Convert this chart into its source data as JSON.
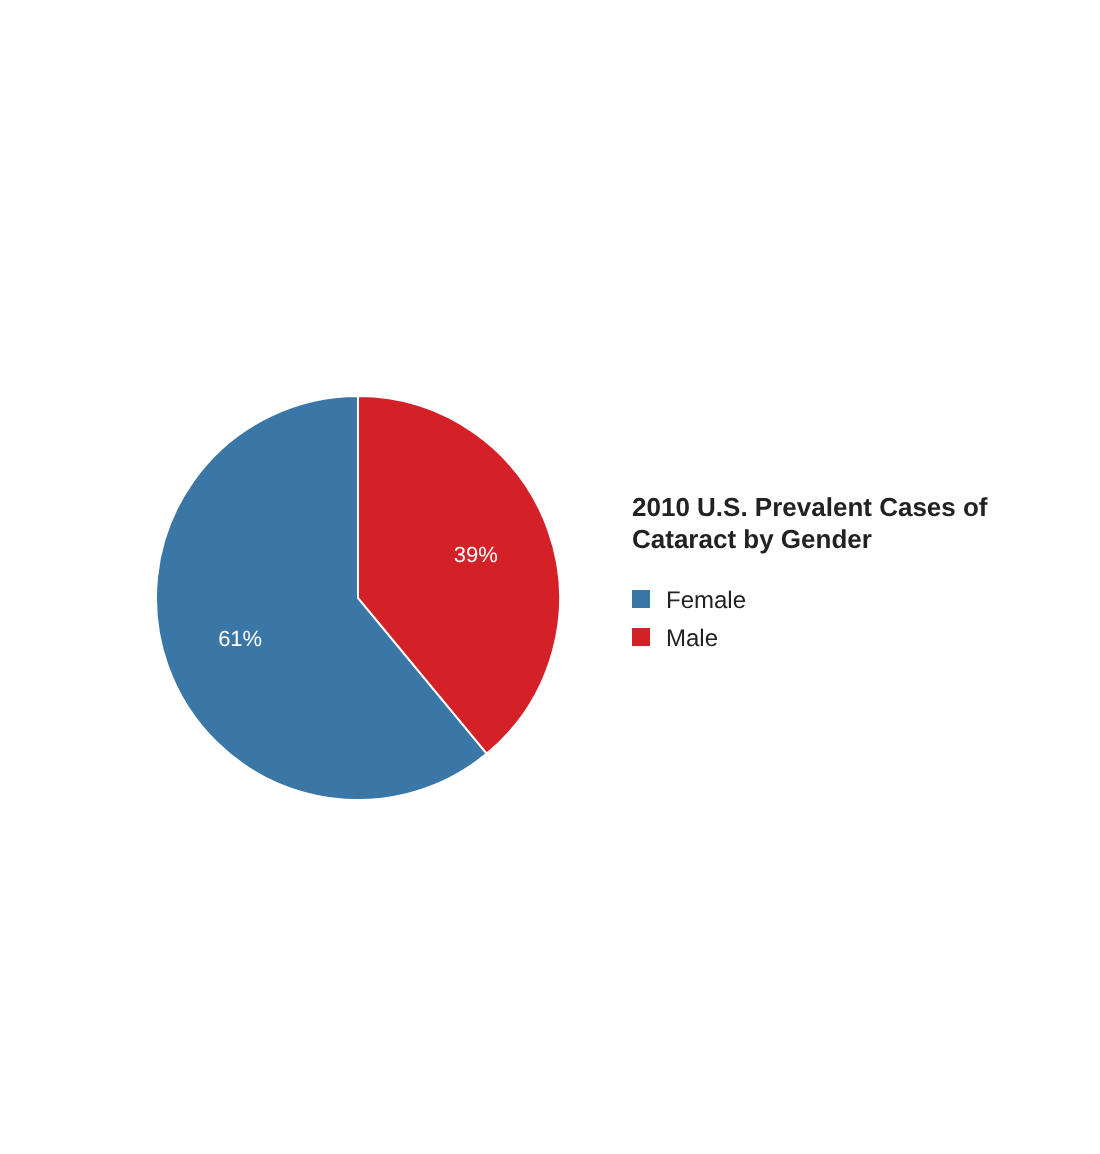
{
  "chart_data": {
    "type": "pie",
    "title": "2010 U.S. Prevalent Cases of Cataract by Gender",
    "categories": [
      "Female",
      "Male"
    ],
    "values": [
      61,
      39
    ],
    "colors": [
      "#3a76a6",
      "#d42027"
    ],
    "value_labels": [
      "61%",
      "39%"
    ],
    "legend": "right"
  }
}
